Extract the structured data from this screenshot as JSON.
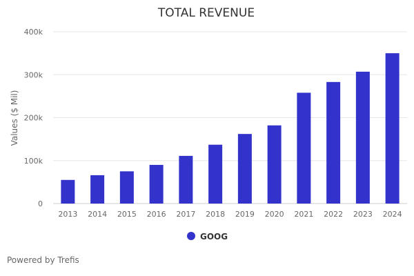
{
  "chart_data": {
    "type": "bar",
    "title": "TOTAL REVENUE",
    "xlabel": "",
    "ylabel": "Values ($ Mil)",
    "categories": [
      "2013",
      "2014",
      "2015",
      "2016",
      "2017",
      "2018",
      "2019",
      "2020",
      "2021",
      "2022",
      "2023",
      "2024"
    ],
    "series": [
      {
        "name": "GOOG",
        "values": [
          55000,
          66000,
          75000,
          90000,
          111000,
          137000,
          162000,
          182000,
          258000,
          283000,
          307000,
          350000
        ]
      }
    ],
    "ylim": [
      0,
      400000
    ],
    "yticks": [
      0,
      100000,
      200000,
      300000,
      400000
    ],
    "ytick_labels": [
      "0",
      "100k",
      "200k",
      "300k",
      "400k"
    ],
    "grid": true,
    "legend_position": "bottom-center",
    "colors": {
      "bar": "#3333CC",
      "grid": "#e6e6e6",
      "text": "#666666",
      "title": "#333333"
    }
  },
  "footer": {
    "credit": "Powered by Trefis"
  }
}
